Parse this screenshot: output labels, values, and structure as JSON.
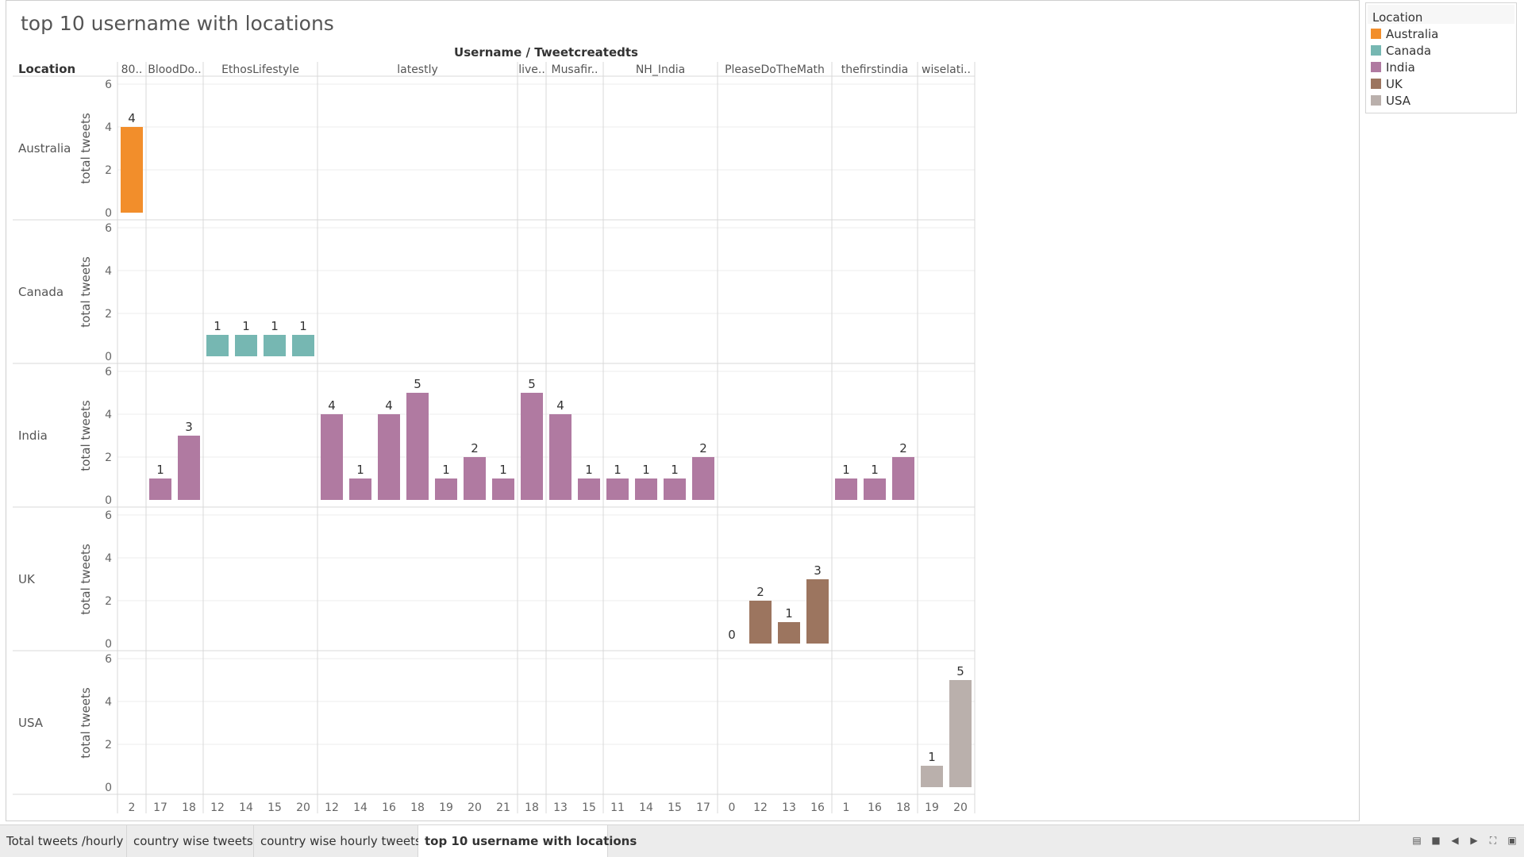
{
  "sheet": {
    "title": "top 10 username with locations"
  },
  "legend": {
    "title": "Location",
    "items": [
      {
        "label": "Australia",
        "color": "#F28E2B"
      },
      {
        "label": "Canada",
        "color": "#76B7B2"
      },
      {
        "label": "India",
        "color": "#B07AA1"
      },
      {
        "label": "UK",
        "color": "#9C755F"
      },
      {
        "label": "USA",
        "color": "#BAB0AC"
      }
    ]
  },
  "tabs": [
    {
      "label": "Total tweets /hourly",
      "active": false
    },
    {
      "label": "country wise tweets",
      "active": false
    },
    {
      "label": "country wise hourly tweets",
      "active": false
    },
    {
      "label": "top 10 username with locations",
      "active": true
    }
  ],
  "chart_data": {
    "type": "bar",
    "column_header": "Username / Tweetcreatedts",
    "row_header": "Location",
    "ylabel": "total tweets",
    "ylim": [
      0,
      6
    ],
    "yticks": [
      0,
      2,
      4,
      6
    ],
    "rows": [
      "Australia",
      "Canada",
      "India",
      "UK",
      "USA"
    ],
    "groups": [
      {
        "name": "80..",
        "hours": [
          "2"
        ]
      },
      {
        "name": "BloodDo..",
        "hours": [
          "17",
          "18"
        ]
      },
      {
        "name": "EthosLifestyle",
        "hours": [
          "12",
          "14",
          "15",
          "20"
        ]
      },
      {
        "name": "latestly",
        "hours": [
          "12",
          "14",
          "16",
          "18",
          "19",
          "20",
          "21"
        ]
      },
      {
        "name": "live..",
        "hours": [
          "18"
        ]
      },
      {
        "name": "Musafir..",
        "hours": [
          "13",
          "15"
        ]
      },
      {
        "name": "NH_India",
        "hours": [
          "11",
          "14",
          "15",
          "17"
        ]
      },
      {
        "name": "PleaseDoTheMath",
        "hours": [
          "0",
          "12",
          "13",
          "16"
        ]
      },
      {
        "name": "thefirstindia",
        "hours": [
          "1",
          "16",
          "18"
        ]
      },
      {
        "name": "wiselati..",
        "hours": [
          "19",
          "20"
        ]
      }
    ],
    "points": [
      {
        "row": "Australia",
        "group": 0,
        "hour": 0,
        "value": 4
      },
      {
        "row": "Canada",
        "group": 2,
        "hour": 0,
        "value": 1
      },
      {
        "row": "Canada",
        "group": 2,
        "hour": 1,
        "value": 1
      },
      {
        "row": "Canada",
        "group": 2,
        "hour": 2,
        "value": 1
      },
      {
        "row": "Canada",
        "group": 2,
        "hour": 3,
        "value": 1
      },
      {
        "row": "India",
        "group": 1,
        "hour": 0,
        "value": 1
      },
      {
        "row": "India",
        "group": 1,
        "hour": 1,
        "value": 3
      },
      {
        "row": "India",
        "group": 3,
        "hour": 0,
        "value": 4
      },
      {
        "row": "India",
        "group": 3,
        "hour": 1,
        "value": 1
      },
      {
        "row": "India",
        "group": 3,
        "hour": 2,
        "value": 4
      },
      {
        "row": "India",
        "group": 3,
        "hour": 3,
        "value": 5
      },
      {
        "row": "India",
        "group": 3,
        "hour": 4,
        "value": 1
      },
      {
        "row": "India",
        "group": 3,
        "hour": 5,
        "value": 2
      },
      {
        "row": "India",
        "group": 3,
        "hour": 6,
        "value": 1
      },
      {
        "row": "India",
        "group": 4,
        "hour": 0,
        "value": 5
      },
      {
        "row": "India",
        "group": 5,
        "hour": 0,
        "value": 4
      },
      {
        "row": "India",
        "group": 5,
        "hour": 1,
        "value": 1
      },
      {
        "row": "India",
        "group": 6,
        "hour": 0,
        "value": 1
      },
      {
        "row": "India",
        "group": 6,
        "hour": 1,
        "value": 1
      },
      {
        "row": "India",
        "group": 6,
        "hour": 2,
        "value": 1
      },
      {
        "row": "India",
        "group": 6,
        "hour": 3,
        "value": 2
      },
      {
        "row": "India",
        "group": 8,
        "hour": 0,
        "value": 1
      },
      {
        "row": "India",
        "group": 8,
        "hour": 1,
        "value": 1
      },
      {
        "row": "India",
        "group": 8,
        "hour": 2,
        "value": 2
      },
      {
        "row": "UK",
        "group": 7,
        "hour": 0,
        "value": 0
      },
      {
        "row": "UK",
        "group": 7,
        "hour": 1,
        "value": 2
      },
      {
        "row": "UK",
        "group": 7,
        "hour": 2,
        "value": 1
      },
      {
        "row": "UK",
        "group": 7,
        "hour": 3,
        "value": 3
      },
      {
        "row": "USA",
        "group": 9,
        "hour": 0,
        "value": 1
      },
      {
        "row": "USA",
        "group": 9,
        "hour": 1,
        "value": 5
      }
    ]
  }
}
